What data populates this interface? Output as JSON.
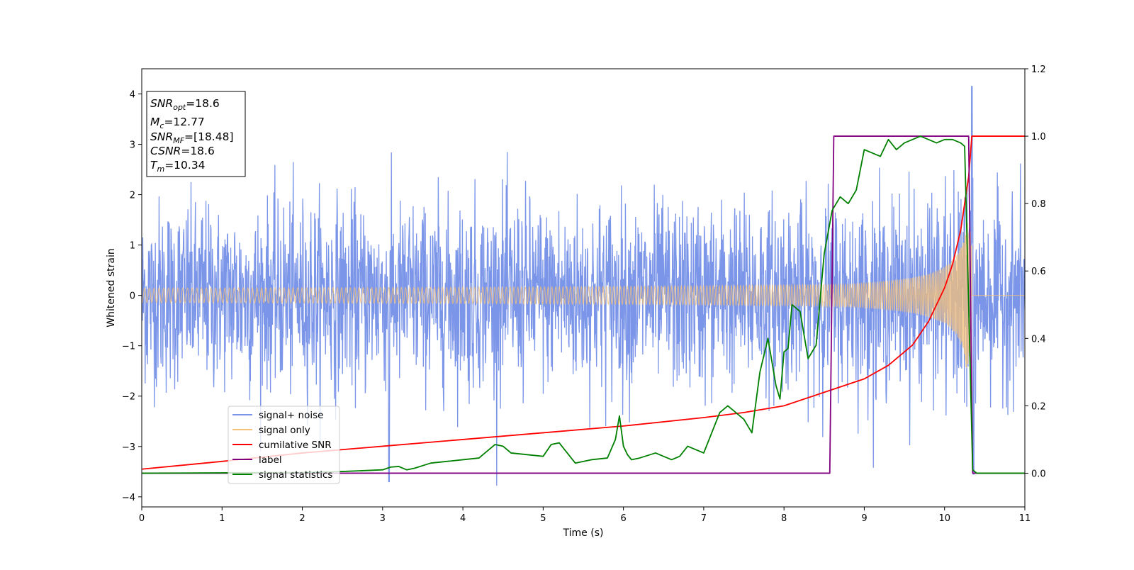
{
  "chart_data": {
    "type": "line",
    "xlabel": "Time (s)",
    "ylabel": "Whitened strain",
    "xlim": [
      0,
      11
    ],
    "ylim_left": [
      -4.2,
      4.5
    ],
    "ylim_right": [
      -0.1,
      1.2
    ],
    "x_ticks": [
      "0",
      "1",
      "2",
      "3",
      "4",
      "5",
      "6",
      "7",
      "8",
      "9",
      "10",
      "11"
    ],
    "y_ticks_left": [
      "−4",
      "−3",
      "−2",
      "−1",
      "0",
      "1",
      "2",
      "3",
      "4"
    ],
    "y_ticks_right": [
      "0.0",
      "0.2",
      "0.4",
      "0.6",
      "0.8",
      "1.0",
      "1.2"
    ],
    "grid": false,
    "legend_position": "lower-left",
    "info_box": {
      "snr_opt": {
        "base": "SNR",
        "sub": "opt",
        "rest": "=18.6"
      },
      "mc": {
        "base": "M",
        "sub": "c",
        "rest": "=12.77"
      },
      "snr_mf": {
        "base": "SNR",
        "sub": "MF",
        "rest": "=[18.48]"
      },
      "csnr": {
        "base": "CSNR",
        "rest": "=18.6"
      },
      "tm": {
        "base": "T",
        "sub": "m",
        "rest": "=10.34"
      }
    },
    "series": [
      {
        "name": "signal+ noise",
        "color": "#7b95e8",
        "axis": "left",
        "description_values": {
          "envelope_abs_approx": 2.2,
          "peak": 4.2,
          "peak_time": 10.34
        }
      },
      {
        "name": "signal only",
        "color": "#f5c27a",
        "axis": "left",
        "chirp": {
          "t_merge": 10.34,
          "peak_amplitude": 2.4
        }
      },
      {
        "name": "cumilative SNR",
        "color": "#ff0000",
        "axis": "right",
        "x": [
          0,
          1,
          2,
          3,
          4,
          5,
          6,
          7,
          7.5,
          8,
          8.5,
          9,
          9.3,
          9.6,
          9.8,
          10.0,
          10.1,
          10.2,
          10.3,
          10.34,
          11
        ],
        "y": [
          0.012,
          0.035,
          0.06,
          0.08,
          0.1,
          0.12,
          0.14,
          0.165,
          0.18,
          0.2,
          0.24,
          0.28,
          0.32,
          0.38,
          0.45,
          0.55,
          0.62,
          0.72,
          0.88,
          1.0,
          1.0
        ]
      },
      {
        "name": "label",
        "color": "#800080",
        "axis": "right",
        "x": [
          0,
          8.57,
          8.62,
          10.3,
          10.35,
          11
        ],
        "y": [
          0,
          0,
          1,
          1,
          0,
          0
        ]
      },
      {
        "name": "signal statistics",
        "color": "#008000",
        "axis": "right",
        "x": [
          0,
          2,
          2.5,
          3,
          3.1,
          3.2,
          3.3,
          3.4,
          3.6,
          3.8,
          4.0,
          4.2,
          4.4,
          4.5,
          4.6,
          4.8,
          5.0,
          5.1,
          5.2,
          5.4,
          5.6,
          5.8,
          5.9,
          5.95,
          6.0,
          6.05,
          6.1,
          6.2,
          6.4,
          6.5,
          6.6,
          6.7,
          6.8,
          7.0,
          7.2,
          7.3,
          7.5,
          7.6,
          7.7,
          7.8,
          7.9,
          7.95,
          8.0,
          8.05,
          8.1,
          8.2,
          8.3,
          8.4,
          8.5,
          8.6,
          8.7,
          8.8,
          8.9,
          9.0,
          9.1,
          9.2,
          9.3,
          9.4,
          9.5,
          9.6,
          9.7,
          9.8,
          9.9,
          10.0,
          10.1,
          10.2,
          10.25,
          10.3,
          10.35,
          10.4,
          11
        ],
        "y": [
          0,
          0.002,
          0.005,
          0.01,
          0.018,
          0.02,
          0.01,
          0.015,
          0.03,
          0.035,
          0.04,
          0.045,
          0.085,
          0.08,
          0.06,
          0.055,
          0.05,
          0.085,
          0.09,
          0.03,
          0.04,
          0.045,
          0.1,
          0.17,
          0.08,
          0.055,
          0.04,
          0.045,
          0.06,
          0.05,
          0.04,
          0.05,
          0.08,
          0.06,
          0.18,
          0.2,
          0.16,
          0.12,
          0.3,
          0.4,
          0.26,
          0.22,
          0.36,
          0.37,
          0.5,
          0.48,
          0.34,
          0.38,
          0.65,
          0.78,
          0.82,
          0.8,
          0.84,
          0.96,
          0.95,
          0.94,
          0.99,
          0.96,
          0.98,
          0.99,
          1.0,
          0.99,
          0.98,
          0.99,
          0.99,
          0.98,
          0.97,
          0.5,
          0.01,
          0,
          0
        ]
      }
    ]
  }
}
